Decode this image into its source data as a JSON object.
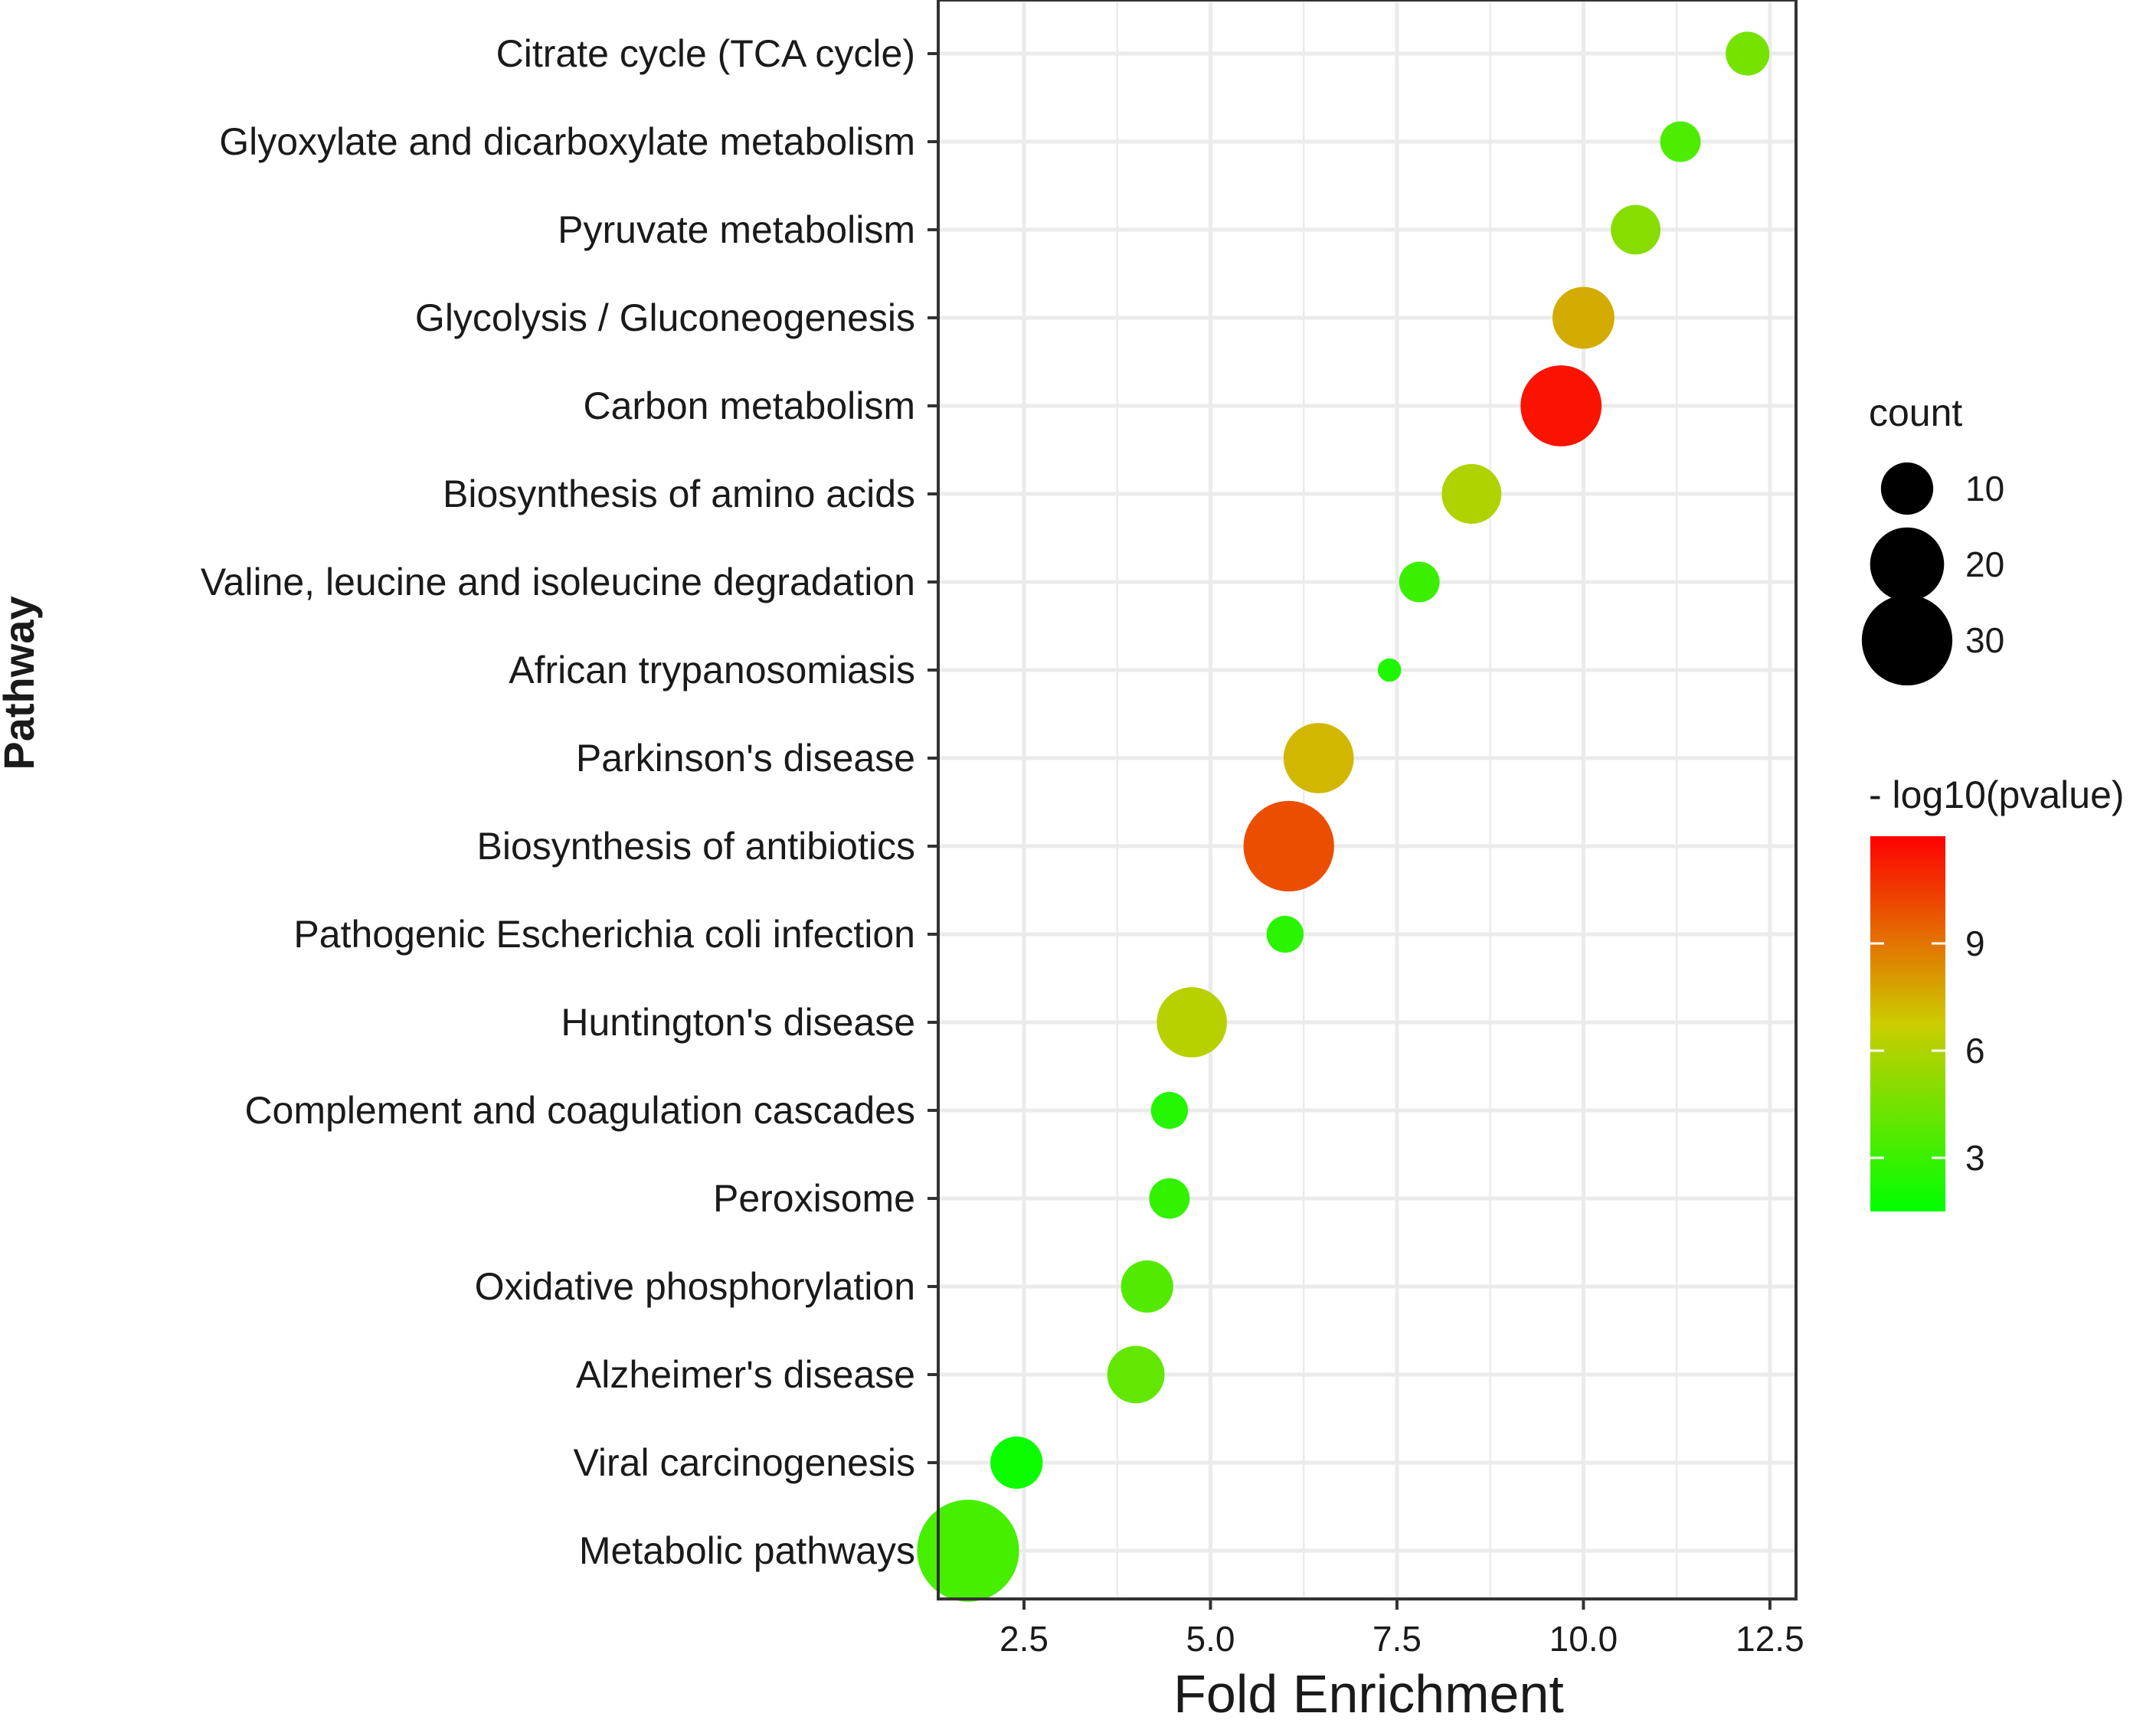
{
  "chart_data": {
    "type": "scatter",
    "title": "",
    "xlabel": "Fold Enrichment",
    "ylabel": "Pathway",
    "xlim": [
      1.35,
      12.85
    ],
    "x_ticks": [
      2.5,
      5.0,
      7.5,
      10.0,
      12.5
    ],
    "x_tick_labels": [
      "2.5",
      "5.0",
      "7.5",
      "10.0",
      "12.5"
    ],
    "grid": true,
    "points": [
      {
        "pathway": "Citrate cycle (TCA cycle)",
        "fold_enrichment": 12.2,
        "count": 7,
        "neg_log10_pvalue": 4.5
      },
      {
        "pathway": "Glyoxylate and dicarboxylate metabolism",
        "fold_enrichment": 11.3,
        "count": 6,
        "neg_log10_pvalue": 3.5
      },
      {
        "pathway": "Pyruvate metabolism",
        "fold_enrichment": 10.7,
        "count": 9,
        "neg_log10_pvalue": 5.0
      },
      {
        "pathway": "Glycolysis / Gluconeogenesis",
        "fold_enrichment": 10.0,
        "count": 14,
        "neg_log10_pvalue": 7.6
      },
      {
        "pathway": "Carbon metabolism",
        "fold_enrichment": 9.7,
        "count": 24,
        "neg_log10_pvalue": 11.5
      },
      {
        "pathway": "Biosynthesis of amino acids",
        "fold_enrichment": 8.5,
        "count": 13,
        "neg_log10_pvalue": 6.0
      },
      {
        "pathway": "Valine, leucine and isoleucine degradation",
        "fold_enrichment": 7.8,
        "count": 6,
        "neg_log10_pvalue": 3.0
      },
      {
        "pathway": "African trypanosomiasis",
        "fold_enrichment": 7.4,
        "count": 2,
        "neg_log10_pvalue": 2.3
      },
      {
        "pathway": "Parkinson's disease",
        "fold_enrichment": 6.45,
        "count": 18,
        "neg_log10_pvalue": 7.3
      },
      {
        "pathway": "Biosynthesis of antibiotics",
        "fold_enrichment": 6.05,
        "count": 30,
        "neg_log10_pvalue": 10.0
      },
      {
        "pathway": "Pathogenic Escherichia coli infection",
        "fold_enrichment": 6.0,
        "count": 5,
        "neg_log10_pvalue": 2.6
      },
      {
        "pathway": "Huntington's disease",
        "fold_enrichment": 4.75,
        "count": 18,
        "neg_log10_pvalue": 6.2
      },
      {
        "pathway": "Complement and coagulation cascades",
        "fold_enrichment": 4.45,
        "count": 5,
        "neg_log10_pvalue": 2.4
      },
      {
        "pathway": "Peroxisome",
        "fold_enrichment": 4.45,
        "count": 6,
        "neg_log10_pvalue": 2.8
      },
      {
        "pathway": "Oxidative phosphorylation",
        "fold_enrichment": 4.15,
        "count": 10,
        "neg_log10_pvalue": 3.6
      },
      {
        "pathway": "Alzheimer's disease",
        "fold_enrichment": 4.0,
        "count": 12,
        "neg_log10_pvalue": 4.0
      },
      {
        "pathway": "Viral carcinogenesis",
        "fold_enrichment": 2.4,
        "count": 10,
        "neg_log10_pvalue": 1.8
      },
      {
        "pathway": "Metabolic pathways",
        "fold_enrichment": 1.75,
        "count": 38,
        "neg_log10_pvalue": 3.3
      }
    ],
    "legend_size": {
      "title": "count",
      "entries": [
        {
          "label": "10",
          "value": 10
        },
        {
          "label": "20",
          "value": 20
        },
        {
          "label": "30",
          "value": 30
        }
      ],
      "placement": "right"
    },
    "legend_color": {
      "title": "- log10(pvalue)",
      "min": 1.5,
      "max": 12.0,
      "ticks": [
        3,
        6,
        9
      ],
      "tick_labels": [
        "3",
        "6",
        "9"
      ],
      "colors": {
        "low": "#00ff00",
        "mid": "#cccc00",
        "high": "#ff0000"
      },
      "placement": "right"
    },
    "colors": {
      "background": "#ffffff",
      "grid": "#ebebeb",
      "axis": "#333333",
      "text": "#1a1a1a",
      "legend_point": "#000000"
    }
  }
}
